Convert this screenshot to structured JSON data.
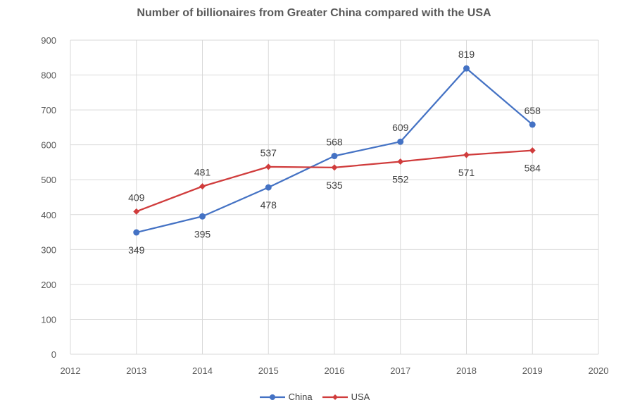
{
  "chart_data": {
    "type": "line",
    "title": "Number of billionaires from Greater China compared with the USA",
    "xlabel": "",
    "ylabel": "",
    "xlim": [
      2012,
      2020
    ],
    "ylim": [
      0,
      900
    ],
    "x_ticks": [
      "2012",
      "2013",
      "2014",
      "2015",
      "2016",
      "2017",
      "2018",
      "2019",
      "2020"
    ],
    "y_ticks": [
      "0",
      "100",
      "200",
      "300",
      "400",
      "500",
      "600",
      "700",
      "800",
      "900"
    ],
    "x": [
      2013,
      2014,
      2015,
      2016,
      2017,
      2018,
      2019
    ],
    "series": [
      {
        "name": "China",
        "color": "#4472C4",
        "marker": "circle",
        "values": [
          349,
          395,
          478,
          568,
          609,
          819,
          658
        ],
        "label_positions": [
          "below",
          "below",
          "below",
          "above",
          "above",
          "above",
          "above"
        ]
      },
      {
        "name": "USA",
        "color": "#D03C3C",
        "marker": "diamond",
        "values": [
          409,
          481,
          537,
          535,
          552,
          571,
          584
        ],
        "label_positions": [
          "above",
          "above",
          "above",
          "below",
          "below",
          "below",
          "below"
        ]
      }
    ],
    "grid": true,
    "legend_position": "bottom"
  }
}
